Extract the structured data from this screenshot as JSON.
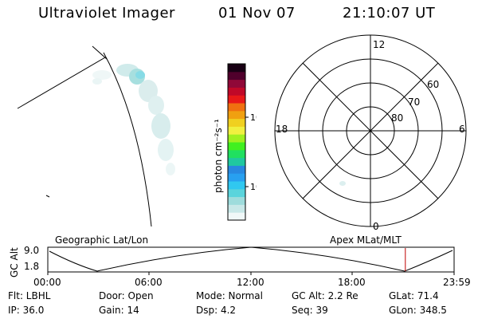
{
  "header": {
    "instrument": "Ultraviolet Imager",
    "date": "01 Nov 07",
    "time": "21:10:07 UT"
  },
  "colorbar": {
    "label": "photon cm⁻²s⁻¹",
    "ticks": [
      "100",
      "10"
    ],
    "colors": [
      "#f0f8f8",
      "#c8e8e8",
      "#9edcdc",
      "#5ad4dc",
      "#30c8f0",
      "#28a0f0",
      "#2888e0",
      "#20c8a0",
      "#20e060",
      "#40f020",
      "#a0f020",
      "#f0f040",
      "#f0d020",
      "#f0a010",
      "#f07010",
      "#e81818",
      "#c00828",
      "#900838",
      "#50002c",
      "#180014"
    ],
    "label_color": "#000000"
  },
  "polar": {
    "hour_labels": [
      "12",
      "18",
      "6",
      "0"
    ],
    "lat_labels": [
      "60",
      "70",
      "80"
    ]
  },
  "timeline": {
    "left_caption": "Geographic Lat/Lon",
    "right_caption": "Apex  MLat/MLT",
    "ylabel": "GC Alt",
    "y_max": "9.0",
    "y_min": "1.8",
    "x_ticks": [
      "00:00",
      "06:00",
      "12:00",
      "18:00",
      "23:59"
    ],
    "current_time_frac": 0.88,
    "marker_color": "#c00000"
  },
  "status": {
    "filter": "Flt: LBHL",
    "ip": "IP: 36.0",
    "door": "Door: Open",
    "gain": "Gain: 14",
    "mode": "Mode: Normal",
    "dsp": "Dsp:      4.2",
    "gc_alt": "GC Alt: 2.2 Re",
    "seq": "Seq: 39",
    "glat": "GLat:  71.4",
    "glon": "GLon: 348.5"
  }
}
